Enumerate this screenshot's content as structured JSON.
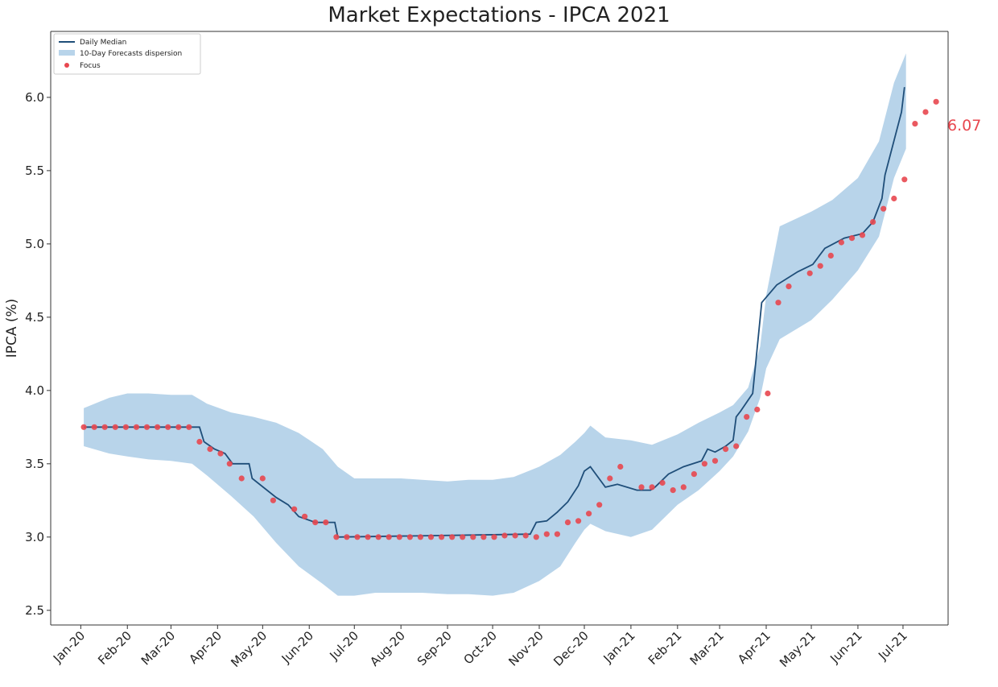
{
  "chart_data": {
    "type": "line",
    "title": "Market Expectations - IPCA 2021",
    "xlabel": "",
    "ylabel": "IPCA (%)",
    "ylim": [
      2.4,
      6.45
    ],
    "yticks": [
      2.5,
      3.0,
      3.5,
      4.0,
      4.5,
      5.0,
      5.5,
      6.0
    ],
    "ytick_labels": [
      "2.5",
      "3.0",
      "3.5",
      "4.0",
      "4.5",
      "5.0",
      "5.5",
      "6.0"
    ],
    "xlim": [
      "2019-12-12",
      "2021-07-31"
    ],
    "xtick_labels": [
      "Jan-20",
      "Feb-20",
      "Mar-20",
      "Apr-20",
      "May-20",
      "Jun-20",
      "Jul-20",
      "Aug-20",
      "Sep-20",
      "Oct-20",
      "Nov-20",
      "Dec-20",
      "Jan-21",
      "Feb-21",
      "Mar-21",
      "Apr-21",
      "May-21",
      "Jun-21",
      "Jul-21"
    ],
    "xtick_dates": [
      "2020-01-01",
      "2020-02-01",
      "2020-03-01",
      "2020-04-01",
      "2020-05-01",
      "2020-06-01",
      "2020-07-01",
      "2020-08-01",
      "2020-09-01",
      "2020-10-01",
      "2020-11-01",
      "2020-12-01",
      "2021-01-01",
      "2021-02-01",
      "2021-03-01",
      "2021-04-01",
      "2021-05-01",
      "2021-06-01",
      "2021-07-01"
    ],
    "grid": false,
    "legend_position": "top-left",
    "legend": [
      "Daily Median",
      "10-Day Forecasts dispersion",
      "Focus"
    ],
    "series": [
      {
        "name": "Daily Median",
        "color": "#1f4e79",
        "x": [
          "2020-01-03",
          "2020-03-20",
          "2020-03-23",
          "2020-03-30",
          "2020-04-06",
          "2020-04-11",
          "2020-04-22",
          "2020-04-24",
          "2020-05-10",
          "2020-05-18",
          "2020-05-25",
          "2020-06-05",
          "2020-06-18",
          "2020-06-20",
          "2020-10-26",
          "2020-10-30",
          "2020-11-06",
          "2020-11-13",
          "2020-11-20",
          "2020-11-27",
          "2020-12-01",
          "2020-12-05",
          "2020-12-15",
          "2020-12-23",
          "2021-01-05",
          "2021-01-14",
          "2021-01-17",
          "2021-01-26",
          "2021-02-05",
          "2021-02-17",
          "2021-02-21",
          "2021-02-26",
          "2021-03-05",
          "2021-03-10",
          "2021-03-12",
          "2021-03-15",
          "2021-03-23",
          "2021-03-29",
          "2021-04-08",
          "2021-04-22",
          "2021-05-02",
          "2021-05-10",
          "2021-05-23",
          "2021-06-04",
          "2021-06-11",
          "2021-06-17",
          "2021-06-19",
          "2021-06-30",
          "2021-07-02"
        ],
        "y": [
          3.75,
          3.75,
          3.65,
          3.6,
          3.57,
          3.5,
          3.5,
          3.4,
          3.27,
          3.22,
          3.14,
          3.1,
          3.1,
          3.0,
          3.02,
          3.1,
          3.11,
          3.17,
          3.24,
          3.35,
          3.45,
          3.48,
          3.34,
          3.36,
          3.32,
          3.32,
          3.34,
          3.43,
          3.48,
          3.52,
          3.6,
          3.58,
          3.62,
          3.66,
          3.82,
          3.86,
          3.98,
          4.6,
          4.72,
          4.81,
          4.86,
          4.97,
          5.04,
          5.07,
          5.15,
          5.31,
          5.47,
          5.9,
          6.07
        ]
      },
      {
        "name": "10-Day Forecasts dispersion",
        "color": "#b8d4ea",
        "x": [
          "2020-01-03",
          "2020-01-20",
          "2020-02-01",
          "2020-02-15",
          "2020-03-01",
          "2020-03-15",
          "2020-03-25",
          "2020-04-10",
          "2020-04-25",
          "2020-05-10",
          "2020-05-25",
          "2020-06-10",
          "2020-06-20",
          "2020-07-01",
          "2020-07-15",
          "2020-08-01",
          "2020-08-15",
          "2020-09-01",
          "2020-09-15",
          "2020-10-01",
          "2020-10-15",
          "2020-11-01",
          "2020-11-15",
          "2020-11-25",
          "2020-12-01",
          "2020-12-05",
          "2020-12-15",
          "2021-01-01",
          "2021-01-15",
          "2021-02-01",
          "2021-02-15",
          "2021-03-01",
          "2021-03-10",
          "2021-03-20",
          "2021-03-28",
          "2021-04-01",
          "2021-04-10",
          "2021-05-01",
          "2021-05-15",
          "2021-06-01",
          "2021-06-15",
          "2021-06-25",
          "2021-07-03"
        ],
        "upper": [
          3.88,
          3.95,
          3.98,
          3.98,
          3.97,
          3.97,
          3.91,
          3.85,
          3.82,
          3.78,
          3.71,
          3.6,
          3.48,
          3.4,
          3.4,
          3.4,
          3.39,
          3.38,
          3.39,
          3.39,
          3.41,
          3.48,
          3.56,
          3.65,
          3.71,
          3.76,
          3.68,
          3.66,
          3.63,
          3.7,
          3.78,
          3.85,
          3.9,
          4.02,
          4.3,
          4.65,
          5.12,
          5.22,
          5.3,
          5.45,
          5.7,
          6.1,
          6.3
        ],
        "lower": [
          3.62,
          3.57,
          3.55,
          3.53,
          3.52,
          3.5,
          3.42,
          3.28,
          3.14,
          2.96,
          2.8,
          2.68,
          2.6,
          2.6,
          2.62,
          2.62,
          2.62,
          2.61,
          2.61,
          2.6,
          2.62,
          2.7,
          2.8,
          2.96,
          3.05,
          3.09,
          3.04,
          3.0,
          3.05,
          3.22,
          3.32,
          3.45,
          3.55,
          3.72,
          3.95,
          4.15,
          4.35,
          4.48,
          4.62,
          4.82,
          5.05,
          5.45,
          5.65
        ]
      },
      {
        "name": "Focus",
        "color": "#e8474f",
        "x": [
          "2020-01-03",
          "2020-01-10",
          "2020-01-17",
          "2020-01-24",
          "2020-01-31",
          "2020-02-07",
          "2020-02-14",
          "2020-02-21",
          "2020-02-28",
          "2020-03-06",
          "2020-03-13",
          "2020-03-20",
          "2020-03-27",
          "2020-04-03",
          "2020-04-09",
          "2020-04-17",
          "2020-05-01",
          "2020-05-08",
          "2020-05-22",
          "2020-05-29",
          "2020-06-05",
          "2020-06-12",
          "2020-06-19",
          "2020-06-26",
          "2020-07-03",
          "2020-07-10",
          "2020-07-17",
          "2020-07-24",
          "2020-07-31",
          "2020-08-07",
          "2020-08-14",
          "2020-08-21",
          "2020-08-28",
          "2020-09-04",
          "2020-09-11",
          "2020-09-18",
          "2020-09-25",
          "2020-10-02",
          "2020-10-09",
          "2020-10-16",
          "2020-10-23",
          "2020-10-30",
          "2020-11-06",
          "2020-11-13",
          "2020-11-20",
          "2020-11-27",
          "2020-12-04",
          "2020-12-11",
          "2020-12-18",
          "2020-12-25",
          "2021-01-08",
          "2021-01-15",
          "2021-01-22",
          "2021-01-29",
          "2021-02-05",
          "2021-02-12",
          "2021-02-19",
          "2021-02-26",
          "2021-03-05",
          "2021-03-12",
          "2021-03-19",
          "2021-03-26",
          "2021-04-02",
          "2021-04-09",
          "2021-04-16",
          "2021-04-30",
          "2021-05-07",
          "2021-05-14",
          "2021-05-21",
          "2021-05-28",
          "2021-06-04",
          "2021-06-11",
          "2021-06-18",
          "2021-06-25",
          "2021-07-02",
          "2021-07-09",
          "2021-07-16",
          "2021-07-23"
        ],
        "y": [
          3.75,
          3.75,
          3.75,
          3.75,
          3.75,
          3.75,
          3.75,
          3.75,
          3.75,
          3.75,
          3.75,
          3.65,
          3.6,
          3.57,
          3.5,
          3.4,
          3.4,
          3.25,
          3.19,
          3.14,
          3.1,
          3.1,
          3.0,
          3.0,
          3.0,
          3.0,
          3.0,
          3.0,
          3.0,
          3.0,
          3.0,
          3.0,
          3.0,
          3.0,
          3.0,
          3.0,
          3.0,
          3.0,
          3.01,
          3.01,
          3.01,
          3.0,
          3.02,
          3.02,
          3.1,
          3.11,
          3.16,
          3.22,
          3.4,
          3.48,
          3.34,
          3.34,
          3.37,
          3.32,
          3.34,
          3.43,
          3.5,
          3.52,
          3.6,
          3.62,
          3.82,
          3.87,
          3.98,
          4.6,
          4.71,
          4.8,
          4.85,
          4.92,
          5.01,
          5.04,
          5.06,
          5.15,
          5.24,
          5.31,
          5.44,
          5.82,
          5.9,
          5.97
        ]
      }
    ],
    "annotations": [
      {
        "text": "6.07",
        "x": "2021-07-23",
        "y": 6.07,
        "color": "#e8474f"
      }
    ]
  }
}
